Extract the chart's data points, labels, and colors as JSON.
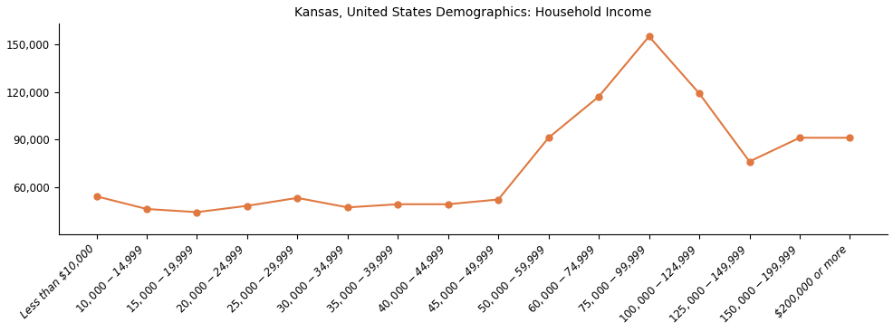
{
  "title": "Kansas, United States Demographics: Household Income",
  "categories": [
    "Less than $10,000",
    "$10,000 - $14,999",
    "$15,000 - $19,999",
    "$20,000 - $24,999",
    "$25,000 - $29,999",
    "$30,000 - $34,999",
    "$35,000 - $39,999",
    "$40,000 - $44,999",
    "$45,000 - $49,999",
    "$50,000 - $59,999",
    "$60,000 - $74,999",
    "$75,000 - $99,999",
    "$100,000 - $124,999",
    "$125,000 - $149,999",
    "$150,000 - $199,999",
    "$200,000 or more"
  ],
  "values": [
    54000,
    46000,
    44000,
    48000,
    53000,
    47000,
    49000,
    49000,
    52000,
    91000,
    117000,
    155000,
    119000,
    76000,
    91000,
    91000
  ],
  "line_color": "#E07840",
  "marker_style": "o",
  "marker_size": 5,
  "linewidth": 1.5,
  "ylim": [
    30000,
    163000
  ],
  "yticks": [
    60000,
    90000,
    120000,
    150000
  ],
  "background_color": "#ffffff",
  "title_fontsize": 10,
  "tick_fontsize": 8.5,
  "italic_ticks": true
}
